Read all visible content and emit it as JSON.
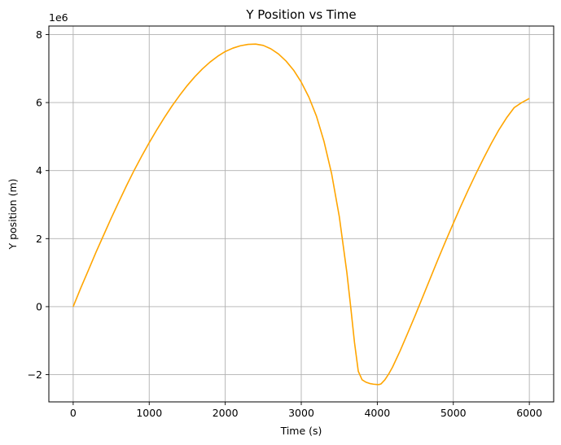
{
  "chart_data": {
    "type": "line",
    "title": "Y Position vs Time",
    "xlabel": "Time (s)",
    "ylabel": "Y position (m)",
    "y_offset_label": "1e6",
    "y_scale_factor": 1000000,
    "xlim": [
      -320,
      6320
    ],
    "ylim": [
      -2.8,
      8.25
    ],
    "xticks": [
      0,
      1000,
      2000,
      3000,
      4000,
      5000,
      6000
    ],
    "xtick_labels": [
      "0",
      "1000",
      "2000",
      "3000",
      "4000",
      "5000",
      "6000"
    ],
    "yticks": [
      -2,
      0,
      2,
      4,
      6,
      8
    ],
    "ytick_labels": [
      "−2",
      "0",
      "2",
      "4",
      "6",
      "8"
    ],
    "grid": true,
    "line_color": "#ffa500",
    "grid_color": "#b0b0b0",
    "series": [
      {
        "x": [
          0,
          100,
          200,
          300,
          400,
          500,
          600,
          700,
          800,
          900,
          1000,
          1100,
          1200,
          1300,
          1400,
          1500,
          1600,
          1700,
          1800,
          1900,
          2000,
          2100,
          2200,
          2300,
          2400,
          2500,
          2600,
          2700,
          2800,
          2900,
          3000,
          3100,
          3200,
          3300,
          3400,
          3500,
          3600,
          3650,
          3700,
          3750,
          3800,
          3850,
          3900,
          3950,
          4000,
          4025,
          4050,
          4100,
          4150,
          4200,
          4300,
          4400,
          4500,
          4600,
          4700,
          4800,
          4900,
          5000,
          5100,
          5200,
          5300,
          5400,
          5500,
          5600,
          5700,
          5800,
          5900,
          6000
        ],
        "y": [
          0.0,
          0.55,
          1.07,
          1.6,
          2.1,
          2.6,
          3.08,
          3.55,
          4.0,
          4.42,
          4.82,
          5.2,
          5.56,
          5.9,
          6.21,
          6.5,
          6.76,
          6.99,
          7.19,
          7.36,
          7.5,
          7.6,
          7.67,
          7.71,
          7.72,
          7.68,
          7.58,
          7.43,
          7.22,
          6.95,
          6.6,
          6.16,
          5.6,
          4.85,
          3.9,
          2.65,
          1.0,
          0.0,
          -1.05,
          -1.9,
          -2.15,
          -2.22,
          -2.26,
          -2.28,
          -2.29,
          -2.29,
          -2.27,
          -2.15,
          -1.98,
          -1.78,
          -1.3,
          -0.78,
          -0.25,
          0.3,
          0.85,
          1.4,
          1.93,
          2.45,
          2.96,
          3.45,
          3.92,
          4.37,
          4.8,
          5.2,
          5.55,
          5.85,
          6.0,
          6.12
        ]
      }
    ]
  }
}
